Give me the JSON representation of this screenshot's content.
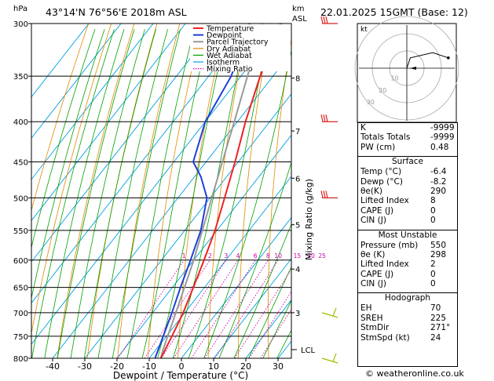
{
  "header": {
    "hpa_label": "hPa",
    "location": "43°14'N 76°56'E 2018m ASL",
    "km_label": "km",
    "asl_label": "ASL",
    "datetime": "22.01.2025 15GMT (Base: 12)"
  },
  "chart_data": {
    "type": "skew-t",
    "title": "43°14'N 76°56'E 2018m ASL",
    "xlabel": "Dewpoint / Temperature (°C)",
    "ylabel": "hPa",
    "right_axis_label": "Mixing Ratio (g/kg)",
    "x_ticks": [
      -40,
      -30,
      -20,
      -10,
      0,
      10,
      20,
      30
    ],
    "pressure_levels": [
      300,
      350,
      400,
      450,
      500,
      550,
      600,
      650,
      700,
      750,
      800
    ],
    "km_ticks": [
      {
        "label": "8",
        "p": 352
      },
      {
        "label": "7",
        "p": 411
      },
      {
        "label": "6",
        "p": 472
      },
      {
        "label": "5",
        "p": 541
      },
      {
        "label": "4",
        "p": 616
      },
      {
        "label": "3",
        "p": 700
      }
    ],
    "lcl": {
      "label": "LCL",
      "p": 780
    },
    "mixing_ratio_labels": [
      "1",
      "2",
      "3",
      "4",
      "6",
      "8",
      "10",
      "15",
      "20",
      "25"
    ],
    "mixing_ratio_values": [
      1,
      2,
      3,
      4,
      6,
      8,
      10,
      15,
      20,
      25
    ],
    "legend": [
      "Temperature",
      "Dewpoint",
      "Parcel Trajectory",
      "Dry Adiabat",
      "Wet Adiabat",
      "Isotherm",
      "Mixing Ratio"
    ],
    "legend_colors": [
      "#ee2222",
      "#1f3fd8",
      "#999999",
      "#e08a00",
      "#00a000",
      "#00a0e0",
      "#cc00aa"
    ],
    "temperature": [
      {
        "p": 800,
        "t": -6.4
      },
      {
        "p": 750,
        "t": -8.3
      },
      {
        "p": 700,
        "t": -10.5
      },
      {
        "p": 650,
        "t": -13.5
      },
      {
        "p": 600,
        "t": -16.8
      },
      {
        "p": 550,
        "t": -20.6
      },
      {
        "p": 500,
        "t": -25.5
      },
      {
        "p": 450,
        "t": -31.0
      },
      {
        "p": 400,
        "t": -37.5
      },
      {
        "p": 350,
        "t": -44.0
      },
      {
        "p": 300,
        "t": -50.5
      }
    ],
    "dewpoint": [
      {
        "p": 800,
        "t": -8.2
      },
      {
        "p": 750,
        "t": -11.0
      },
      {
        "p": 700,
        "t": -14.0
      },
      {
        "p": 650,
        "t": -17.5
      },
      {
        "p": 600,
        "t": -21.0
      },
      {
        "p": 550,
        "t": -25.0
      },
      {
        "p": 500,
        "t": -31.0
      },
      {
        "p": 470,
        "t": -38.0
      },
      {
        "p": 450,
        "t": -44.0
      },
      {
        "p": 400,
        "t": -50.0
      },
      {
        "p": 350,
        "t": -53.0
      },
      {
        "p": 300,
        "t": -60.0
      }
    ],
    "parcel": [
      {
        "p": 800,
        "t": -6.4
      },
      {
        "p": 780,
        "t": -7.8
      },
      {
        "p": 700,
        "t": -12.8
      },
      {
        "p": 600,
        "t": -20.0
      },
      {
        "p": 500,
        "t": -29.5
      },
      {
        "p": 400,
        "t": -41.0
      },
      {
        "p": 300,
        "t": -56.0
      }
    ],
    "wind_barb_pressures": [
      300,
      400,
      500,
      700,
      800
    ]
  },
  "hodograph": {
    "label": "kt",
    "ring_labels": [
      "10",
      "20",
      "30"
    ],
    "trace_kt": [
      [
        0,
        0
      ],
      [
        1,
        3
      ],
      [
        2,
        6
      ],
      [
        15,
        9
      ],
      [
        24,
        6
      ]
    ]
  },
  "indices": [
    {
      "label": "K",
      "value": "-9999"
    },
    {
      "label": "Totals Totals",
      "value": "-9999"
    },
    {
      "label": "PW (cm)",
      "value": "0.48"
    }
  ],
  "surface": {
    "title": "Surface",
    "rows": [
      {
        "label": "Temp (°C)",
        "value": "-6.4"
      },
      {
        "label": "Dewp (°C)",
        "value": "-8.2"
      },
      {
        "label": "θe(K)",
        "value": "290"
      },
      {
        "label": "Lifted Index",
        "value": "8"
      },
      {
        "label": "CAPE (J)",
        "value": "0"
      },
      {
        "label": "CIN (J)",
        "value": "0"
      }
    ]
  },
  "most_unstable": {
    "title": "Most Unstable",
    "rows": [
      {
        "label": "Pressure (mb)",
        "value": "550"
      },
      {
        "label": "θe (K)",
        "value": "298"
      },
      {
        "label": "Lifted Index",
        "value": "2"
      },
      {
        "label": "CAPE (J)",
        "value": "0"
      },
      {
        "label": "CIN (J)",
        "value": "0"
      }
    ]
  },
  "hodograph_table": {
    "title": "Hodograph",
    "rows": [
      {
        "label": "EH",
        "value": "70"
      },
      {
        "label": "SREH",
        "value": "225"
      },
      {
        "label": "StmDir",
        "value": "271°"
      },
      {
        "label": "StmSpd (kt)",
        "value": "24"
      }
    ]
  },
  "footer": "© weatheronline.co.uk"
}
